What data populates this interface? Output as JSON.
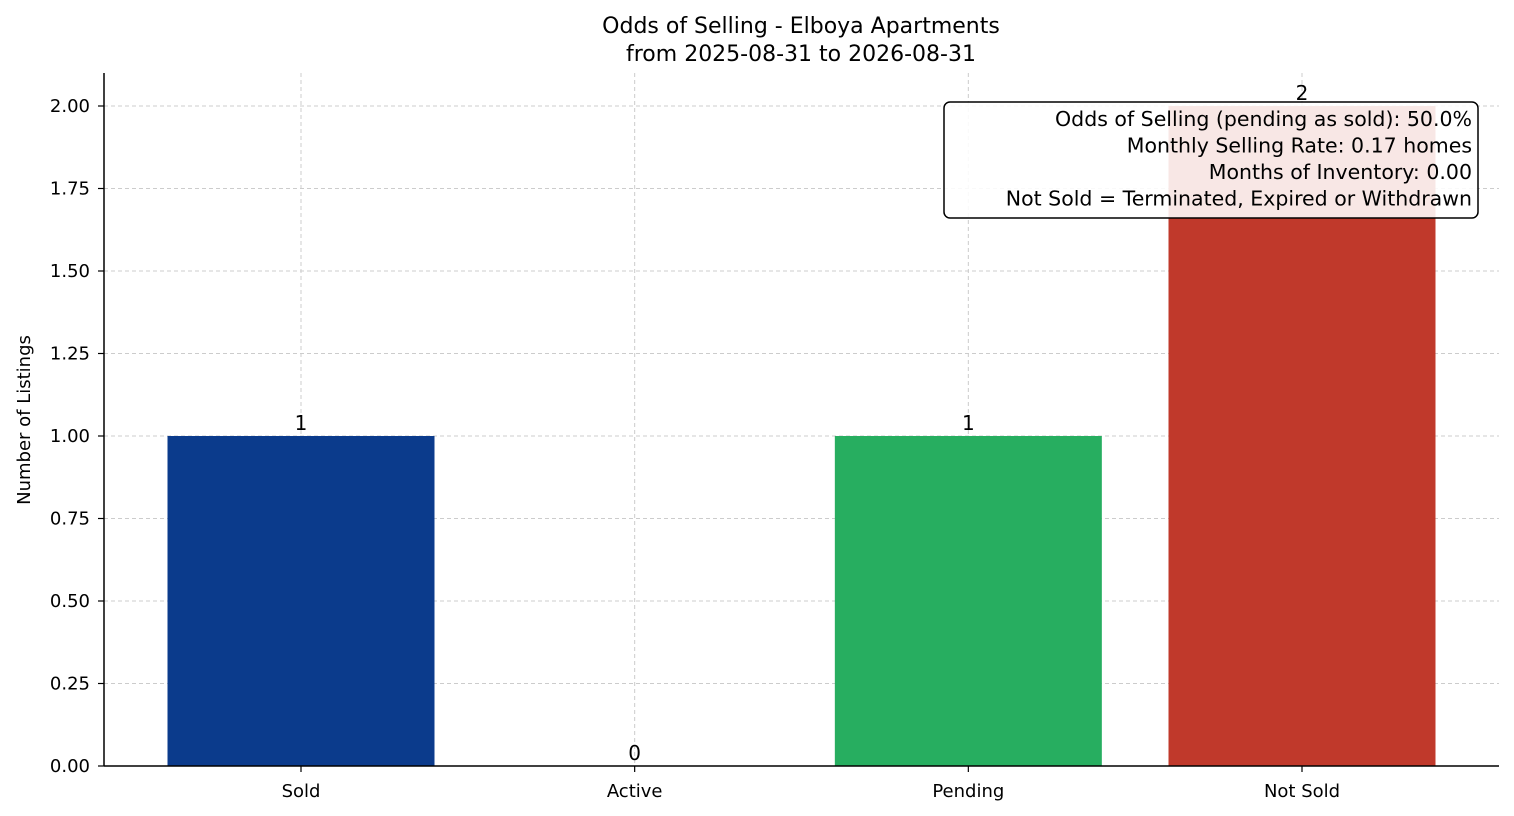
{
  "chart_data": {
    "type": "bar",
    "title": "Odds of Selling - Elboya Apartments",
    "subtitle": "from 2025-08-31 to 2026-08-31",
    "xlabel": "",
    "ylabel": "Number of Listings",
    "categories": [
      "Sold",
      "Active",
      "Pending",
      "Not Sold"
    ],
    "values": [
      1,
      0,
      1,
      2
    ],
    "data_labels": [
      "1",
      "0",
      "1",
      "2"
    ],
    "colors": [
      "#0b3b8c",
      "#3a7bd5",
      "#27ae60",
      "#c0392b"
    ],
    "ylim": [
      0,
      2.1
    ],
    "yticks": [
      0.0,
      0.25,
      0.5,
      0.75,
      1.0,
      1.25,
      1.5,
      1.75,
      2.0
    ],
    "ytick_labels": [
      "0.00",
      "0.25",
      "0.50",
      "0.75",
      "1.00",
      "1.25",
      "1.50",
      "1.75",
      "2.00"
    ],
    "grid": true,
    "annotation": {
      "placement": "top-right",
      "lines": [
        "Odds of Selling (pending as sold): 50.0%",
        "Monthly Selling Rate: 0.17 homes",
        "Months of Inventory: 0.00",
        "Not Sold = Terminated, Expired or Withdrawn"
      ]
    }
  }
}
